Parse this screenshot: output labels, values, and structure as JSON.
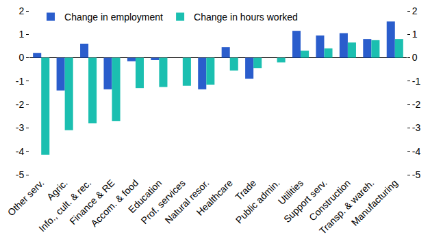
{
  "chart_data": {
    "type": "bar",
    "categories": [
      "Other serv.",
      "Agric.",
      "Info., cult. & rec.",
      "Finance & RE",
      "Accom. & food",
      "Education",
      "Prof. services",
      "Natural resor.",
      "Healthcare",
      "Trade",
      "Public admin.",
      "Utilities",
      "Support serv.",
      "Construction",
      "Transp. & wareh.",
      "Manufacturing"
    ],
    "series": [
      {
        "name": "Change in employment",
        "color": "#2a5dcc",
        "values": [
          0.2,
          -1.4,
          0.6,
          -1.35,
          -0.15,
          -0.1,
          0.0,
          -1.35,
          0.45,
          -0.9,
          0.0,
          1.15,
          0.95,
          1.05,
          0.8,
          1.55
        ]
      },
      {
        "name": "Change in hours worked",
        "color": "#1bbfb0",
        "values": [
          -4.15,
          -3.1,
          -2.8,
          -2.7,
          -1.3,
          -1.25,
          -1.2,
          -1.15,
          -0.55,
          -0.45,
          -0.2,
          0.3,
          0.4,
          0.65,
          0.75,
          0.8
        ]
      }
    ],
    "ylim": [
      -5,
      2
    ],
    "yticks": [
      -5,
      -4,
      -3,
      -2,
      -1,
      0,
      1,
      2
    ],
    "y2lim": [
      -5,
      2
    ],
    "y2ticks": [
      -5,
      -4,
      -3,
      -2,
      -1,
      0,
      1,
      2
    ],
    "grid": false,
    "legend": "top left"
  }
}
